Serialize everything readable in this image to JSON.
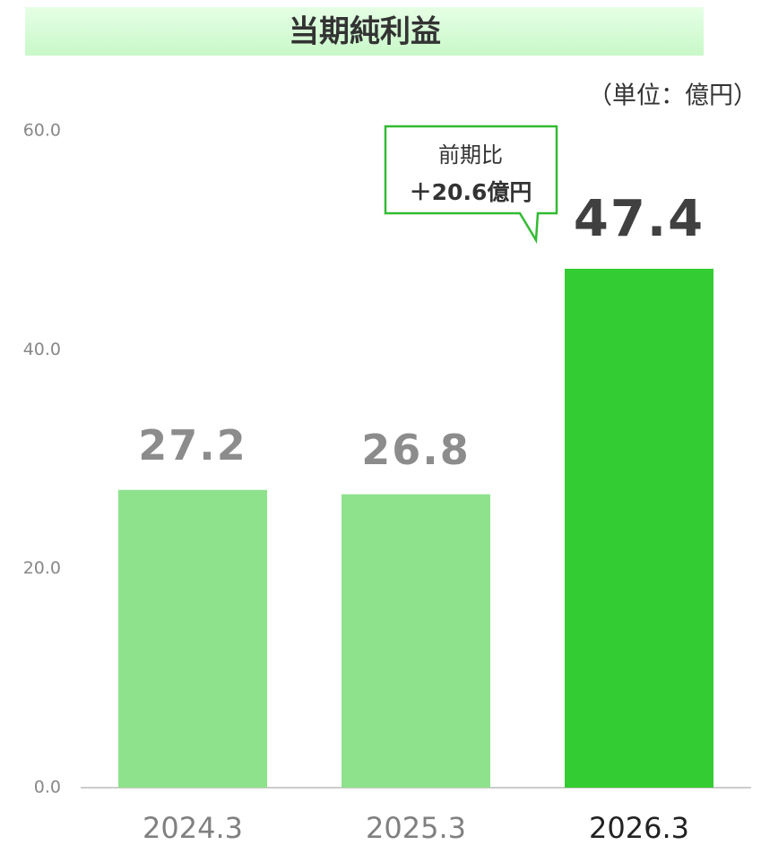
{
  "chart_data": {
    "type": "bar",
    "title": "当期純利益",
    "subtitle": "（単位：億円）",
    "categories": [
      "2024.3",
      "2025.3",
      "2026.3"
    ],
    "values": [
      27.2,
      26.8,
      47.4
    ],
    "colors": [
      "#8ee28c",
      "#8ee28c",
      "#33cc33"
    ],
    "value_label_colors": [
      "#8c8c8c",
      "#8c8c8c",
      "#404040"
    ],
    "category_label_colors": [
      "#808080",
      "#808080",
      "#222222"
    ],
    "ylim": [
      0,
      60
    ],
    "yticks": [
      {
        "value": 0,
        "label": "0.0"
      },
      {
        "value": 20,
        "label": "20.0"
      },
      {
        "value": 40,
        "label": "40.0"
      },
      {
        "value": 60,
        "label": "60.0"
      }
    ],
    "grid": false,
    "annotations": [
      "前期比",
      "＋20.6億円"
    ]
  }
}
